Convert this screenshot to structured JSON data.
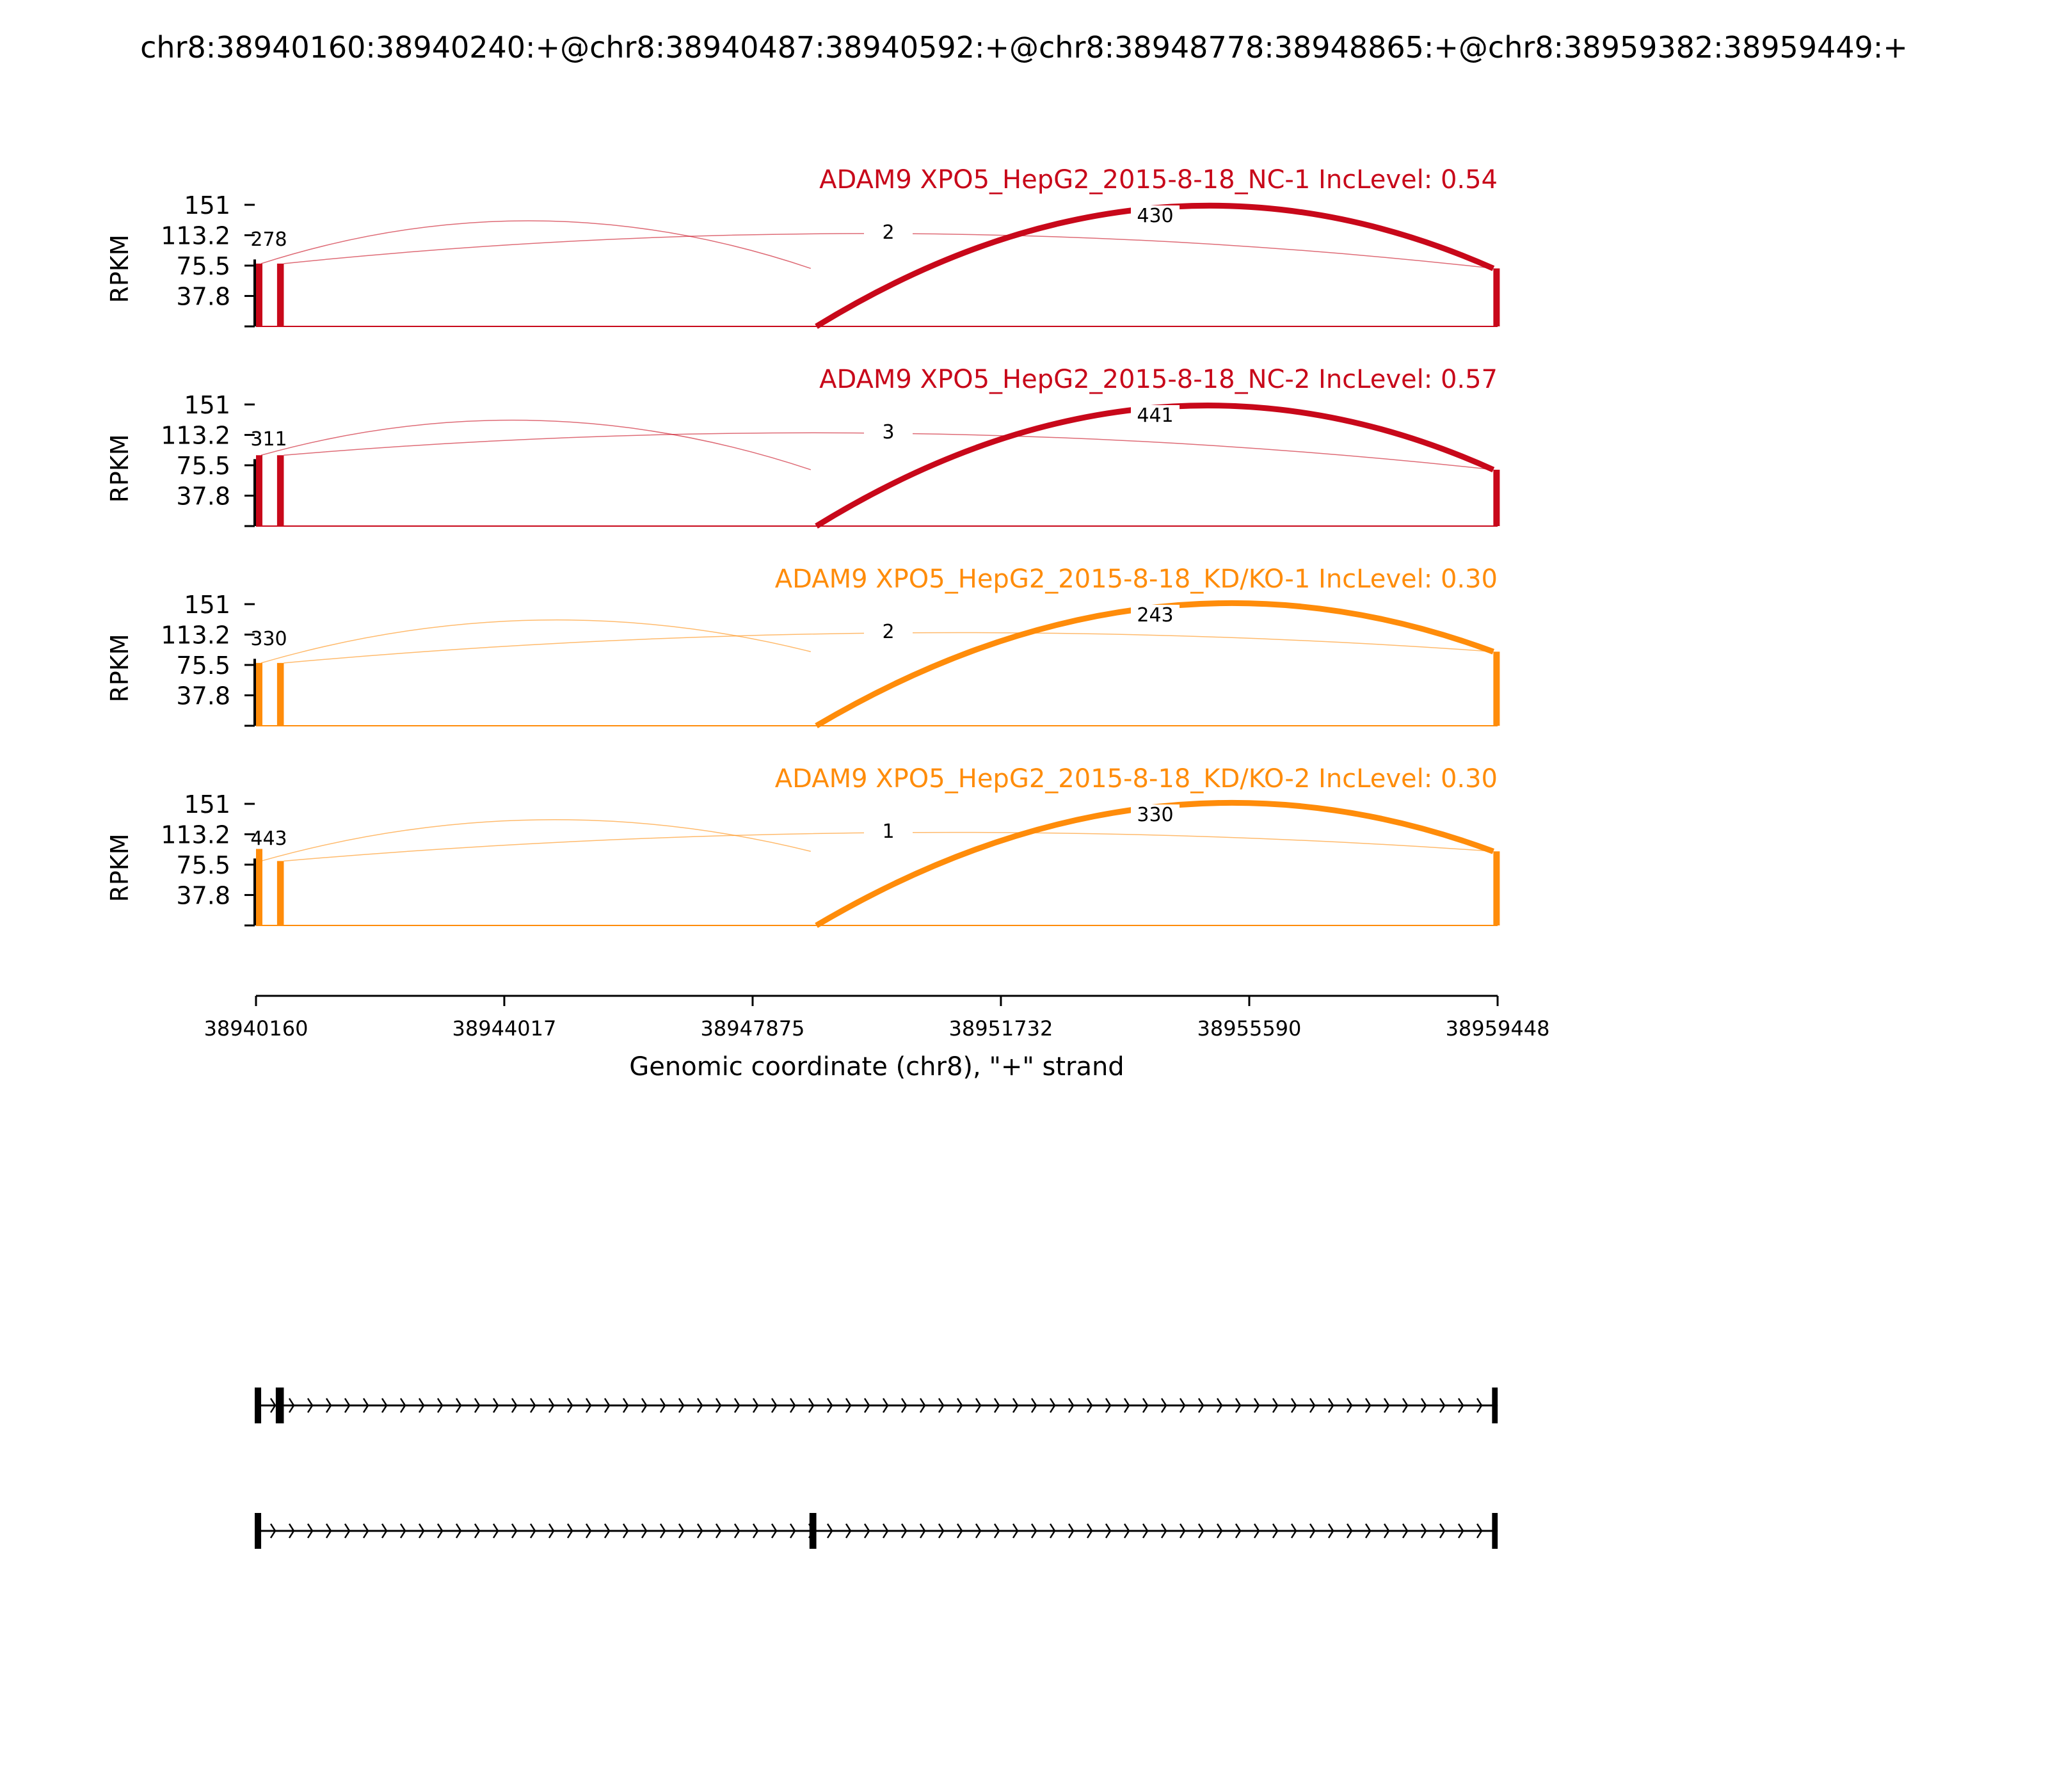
{
  "figure": {
    "title": "chr8:38940160:38940240:+@chr8:38940487:38940592:+@chr8:38948778:38948865:+@chr8:38959382:38959449:+",
    "colors": {
      "nc": "#c8081a",
      "kd": "#ff8c0a",
      "axis": "#000000"
    }
  },
  "chart_data": {
    "type": "area",
    "subtype": "sashimi",
    "xlabel": "Genomic coordinate (chr8), \"+\" strand",
    "ylabel": "RPKM",
    "xlim": [
      38940160,
      38959448
    ],
    "xticks": [
      38940160,
      38944017,
      38947875,
      38951732,
      38955590,
      38959448
    ],
    "xtick_labels": [
      "38940160",
      "38944017",
      "38947875",
      "38951732",
      "38955590",
      "38959448"
    ],
    "ylim": [
      0,
      151
    ],
    "yticks": [
      37.8,
      75.5,
      113.2,
      151
    ],
    "ytick_labels": [
      "37.8",
      "75.5",
      "113.2",
      "151"
    ],
    "exons": [
      {
        "start": 38940160,
        "end": 38940240
      },
      {
        "start": 38940487,
        "end": 38940592
      },
      {
        "start": 38948778,
        "end": 38948865
      },
      {
        "start": 38959382,
        "end": 38959449
      }
    ],
    "panels": [
      {
        "title": "ADAM9 XPO5_HepG2_2015-8-18_NC-1 IncLevel: 0.54",
        "group": "nc",
        "coverage": [
          78,
          78,
          0,
          72,
          0
        ],
        "junctions": [
          {
            "from": 38940240,
            "to": 38948778,
            "count": "278"
          },
          {
            "from": 38948865,
            "to": 38959382,
            "count": "430"
          },
          {
            "from": 38940592,
            "to": 38959382,
            "count": "2"
          }
        ]
      },
      {
        "title": "ADAM9 XPO5_HepG2_2015-8-18_NC-2 IncLevel: 0.57",
        "group": "nc",
        "coverage": [
          88,
          88,
          0,
          70,
          0
        ],
        "junctions": [
          {
            "from": 38940240,
            "to": 38948778,
            "count": "311"
          },
          {
            "from": 38948865,
            "to": 38959382,
            "count": "441"
          },
          {
            "from": 38940592,
            "to": 38959382,
            "count": "3"
          }
        ]
      },
      {
        "title": "ADAM9 XPO5_HepG2_2015-8-18_KD/KO-1 IncLevel: 0.30",
        "group": "kd",
        "coverage": [
          78,
          78,
          0,
          92,
          0
        ],
        "junctions": [
          {
            "from": 38940240,
            "to": 38948778,
            "count": "330"
          },
          {
            "from": 38948865,
            "to": 38959382,
            "count": "243"
          },
          {
            "from": 38940592,
            "to": 38959382,
            "count": "2"
          }
        ]
      },
      {
        "title": "ADAM9 XPO5_HepG2_2015-8-18_KD/KO-2 IncLevel: 0.30",
        "group": "kd",
        "coverage": [
          95,
          80,
          0,
          92,
          0
        ],
        "junctions": [
          {
            "from": 38940240,
            "to": 38948778,
            "count": "443"
          },
          {
            "from": 38948865,
            "to": 38959382,
            "count": "330"
          },
          {
            "from": 38940592,
            "to": 38959382,
            "count": "1"
          }
        ]
      }
    ],
    "isoforms": [
      {
        "exons": [
          [
            38940160,
            38940240
          ],
          [
            38940487,
            38940592
          ],
          [
            38959382,
            38959449
          ]
        ]
      },
      {
        "exons": [
          [
            38940160,
            38940240
          ],
          [
            38948778,
            38948865
          ],
          [
            38959382,
            38959449
          ]
        ]
      }
    ]
  }
}
